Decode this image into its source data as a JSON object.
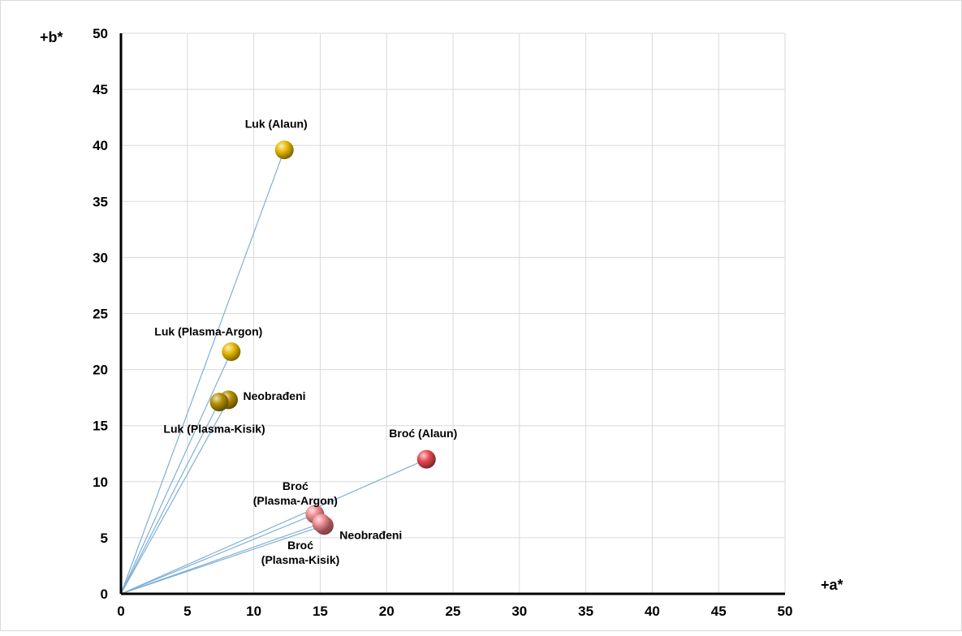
{
  "chart_data": {
    "type": "scatter",
    "title": "",
    "xlabel": "+a*",
    "ylabel": "+b*",
    "xlim": [
      0,
      50
    ],
    "ylim": [
      0,
      50
    ],
    "xticks": [
      0,
      5,
      10,
      15,
      20,
      25,
      30,
      35,
      40,
      45,
      50
    ],
    "yticks": [
      0,
      5,
      10,
      15,
      20,
      25,
      30,
      35,
      40,
      45,
      50
    ],
    "grid": true,
    "legend": "none",
    "ray_origin": [
      0,
      0
    ],
    "colors": {
      "luk": "#e0b400",
      "broc": "#e8484f",
      "broc_light": "#ef8a90",
      "ray": "#7fb0d6",
      "grid": "#d9d9d9"
    },
    "points": [
      {
        "series": "Luk",
        "label": "Luk (Alaun)",
        "x": 12.3,
        "y": 39.6,
        "color": "#e6b800"
      },
      {
        "series": "Luk",
        "label": "Luk (Plasma-Argon)",
        "x": 8.3,
        "y": 21.6,
        "color": "#e6b800"
      },
      {
        "series": "Luk",
        "label": "Neobrađeni",
        "x": 8.1,
        "y": 17.3,
        "color": "#b38f00"
      },
      {
        "series": "Luk",
        "label": "Luk (Plasma-Kisik)",
        "x": 7.4,
        "y": 17.1,
        "color": "#b38f00"
      },
      {
        "series": "Broć",
        "label": "Broć (Alaun)",
        "x": 23.0,
        "y": 12.0,
        "color": "#e8484f"
      },
      {
        "series": "Broć",
        "label": "Broć\n(Plasma-Argon)",
        "x": 14.6,
        "y": 7.1,
        "color": "#ef8a90"
      },
      {
        "series": "Broć",
        "label": "Neobrađeni",
        "x": 15.3,
        "y": 6.1,
        "color": "#e86a72"
      },
      {
        "series": "Broć",
        "label": "Broć\n(Plasma-Kisik)",
        "x": 15.1,
        "y": 6.3,
        "color": "#ef8a90"
      }
    ]
  }
}
